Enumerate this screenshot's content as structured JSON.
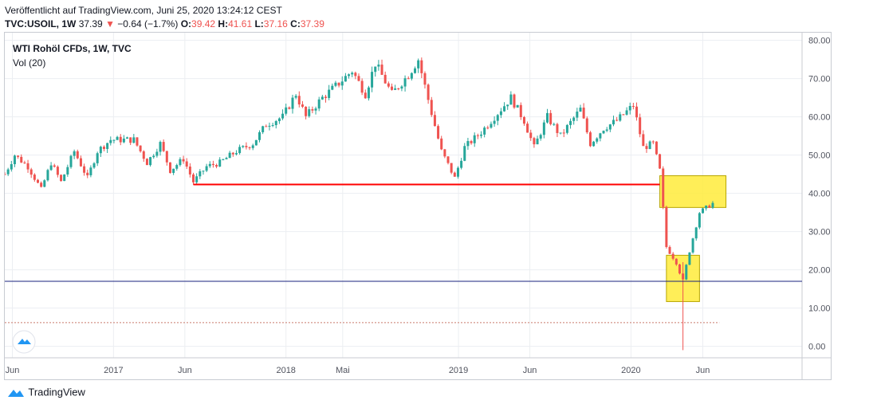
{
  "header": {
    "published": "Veröffentlicht auf TradingView.com, Juni 25, 2020 13:24:12 CEST",
    "symbol": "TVC:USOIL, 1W",
    "last": "37.39",
    "change": "−0.64 (−1.7%)",
    "o_label": "O:",
    "o_value": "39.42",
    "h_label": "H:",
    "h_value": "41.61",
    "l_label": "L:",
    "l_value": "37.16",
    "c_label": "C:",
    "c_value": "37.39"
  },
  "legend": {
    "title": "WTI Rohöl CFDs, 1W, TVC",
    "volume": "Vol (20)"
  },
  "footer": {
    "brand": "TradingView"
  },
  "colors": {
    "up": "#26a69a",
    "down": "#ef5350",
    "support": "#ff0000",
    "hline": "#1a237e",
    "box_fill": "#ffeb3b",
    "box_stroke": "#b8a600"
  },
  "chart_data": {
    "type": "candlestick",
    "title": "WTI Rohöl CFDs, 1W, TVC",
    "ylim": [
      -3,
      82
    ],
    "y_ticks": [
      "80.00",
      "70.00",
      "60.00",
      "50.00",
      "40.00",
      "30.00",
      "20.00",
      "10.00",
      "0.00"
    ],
    "y_tick_values": [
      80,
      70,
      60,
      50,
      40,
      30,
      20,
      10,
      0
    ],
    "x_range": [
      "2016-05-16",
      "2020-12-28"
    ],
    "x_ticks": [
      {
        "label": "Jun",
        "date": "2016-06-01"
      },
      {
        "label": "2017",
        "date": "2017-01-01"
      },
      {
        "label": "Jun",
        "date": "2017-06-01"
      },
      {
        "label": "2018",
        "date": "2018-01-01"
      },
      {
        "label": "Mai",
        "date": "2018-05-01"
      },
      {
        "label": "2019",
        "date": "2019-01-01"
      },
      {
        "label": "Jun",
        "date": "2019-06-01"
      },
      {
        "label": "2020",
        "date": "2020-01-01"
      },
      {
        "label": "Jun",
        "date": "2020-06-01"
      }
    ],
    "close_path": [
      [
        "2016-05-16",
        45
      ],
      [
        "2016-06-06",
        50
      ],
      [
        "2016-07-04",
        47
      ],
      [
        "2016-08-01",
        41
      ],
      [
        "2016-08-22",
        48
      ],
      [
        "2016-09-12",
        43
      ],
      [
        "2016-10-10",
        51
      ],
      [
        "2016-11-07",
        44
      ],
      [
        "2016-11-28",
        51
      ],
      [
        "2016-12-26",
        54
      ],
      [
        "2017-02-13",
        54
      ],
      [
        "2017-03-13",
        48
      ],
      [
        "2017-04-10",
        53
      ],
      [
        "2017-05-01",
        46
      ],
      [
        "2017-05-29",
        49
      ],
      [
        "2017-06-19",
        43
      ],
      [
        "2017-07-17",
        47
      ],
      [
        "2017-08-14",
        48
      ],
      [
        "2017-09-18",
        51
      ],
      [
        "2017-10-23",
        53
      ],
      [
        "2017-11-20",
        58
      ],
      [
        "2017-12-25",
        60
      ],
      [
        "2018-01-22",
        66
      ],
      [
        "2018-02-12",
        60
      ],
      [
        "2018-03-19",
        65
      ],
      [
        "2018-04-16",
        68
      ],
      [
        "2018-05-21",
        72
      ],
      [
        "2018-06-18",
        66
      ],
      [
        "2018-07-09",
        74
      ],
      [
        "2018-08-13",
        66
      ],
      [
        "2018-09-17",
        71
      ],
      [
        "2018-10-08",
        75
      ],
      [
        "2018-11-05",
        61
      ],
      [
        "2018-11-26",
        51
      ],
      [
        "2018-12-24",
        44
      ],
      [
        "2019-01-14",
        52
      ],
      [
        "2019-02-18",
        56
      ],
      [
        "2019-04-01",
        62
      ],
      [
        "2019-04-22",
        65
      ],
      [
        "2019-05-20",
        59
      ],
      [
        "2019-06-10",
        52
      ],
      [
        "2019-07-08",
        60
      ],
      [
        "2019-08-05",
        55
      ],
      [
        "2019-09-16",
        62
      ],
      [
        "2019-10-07",
        53
      ],
      [
        "2019-11-04",
        57
      ],
      [
        "2019-12-02",
        59
      ],
      [
        "2020-01-06",
        63
      ],
      [
        "2020-01-27",
        52
      ],
      [
        "2020-02-17",
        53
      ],
      [
        "2020-03-02",
        46
      ],
      [
        "2020-03-16",
        26
      ],
      [
        "2020-04-06",
        22
      ],
      [
        "2020-04-20",
        17
      ],
      [
        "2020-05-04",
        25
      ],
      [
        "2020-05-25",
        35
      ],
      [
        "2020-06-22",
        37.39
      ]
    ],
    "special_wicks": [
      {
        "date": "2020-04-20",
        "low": -1,
        "high": 22
      }
    ],
    "support_line": {
      "x1": "2017-06-19",
      "x2": "2020-03-02",
      "y1": 42.3,
      "y2": 42.3
    },
    "horizontal_line": {
      "y": 17
    },
    "dotted_line": {
      "x1": "2016-05-16",
      "x2": "2020-07-06",
      "y": 6.2
    },
    "boxes": [
      {
        "x1": "2020-03-02",
        "x2": "2020-07-20",
        "y1": 36.3,
        "y2": 44.6
      },
      {
        "x1": "2020-03-16",
        "x2": "2020-05-25",
        "y1": 11.7,
        "y2": 23.8
      }
    ]
  }
}
